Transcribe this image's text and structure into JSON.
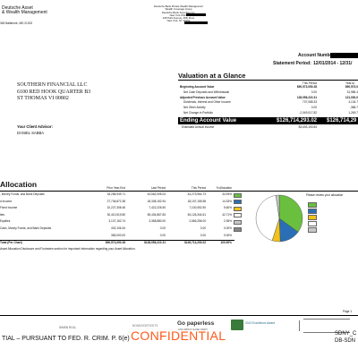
{
  "bank": {
    "name_line1": "Deutsche Asset",
    "name_line2": "& Wealth Management",
    "address": "345 Baltimore, MD 21202"
  },
  "header_center": {
    "lines": [
      "Deutsche Bank Private Wealth Management",
      "Wealth Coverage Group",
      "Deutsche Bank Securities Inc.",
      "New York Office",
      "345 Park Avenue, 26th Floor",
      "New York, NY 10154"
    ]
  },
  "account": {
    "number_label": "Account Number:",
    "statement_period_label": "Statement Period:",
    "statement_period_value": "12/01/2014 - 12/31/"
  },
  "client": {
    "lines": [
      "SOUTHERN FINANCIAL LLC",
      "6100 RED HOOK QUARTER B3",
      "ST THOMAS VI 00802"
    ],
    "advisor_label": "Your Client Advisor:",
    "advisor_name": "DANIEL SABBA"
  },
  "valuation": {
    "title": "Valuation at a Glance",
    "col_this_period": "This Period",
    "col_year_to": "Year-to",
    "rows": [
      {
        "label": "Beginning Account Value",
        "value": "$90,573,050.28",
        "ytd": "$90,573,0",
        "bold": true
      },
      {
        "label": "Net Cash Deposits and Withdrawals",
        "value": "0.00",
        "ytd": "31,986.4",
        "bold": false
      },
      {
        "label": "Adjusted Previous Account Value",
        "value": "128,056,222.31",
        "ytd": "121,030,0",
        "bold": true
      },
      {
        "label": "Dividends, Interest and Other Income",
        "value": "707,088.33",
        "ytd": "4,134.7",
        "bold": false
      },
      {
        "label": "Net Other Activity",
        "value": "0.00",
        "ytd": "-368.7",
        "bold": false
      },
      {
        "label": "Net Change in Portfolio",
        "value": "-2,049,017.82",
        "ytd": "1,269.7",
        "bold": false
      }
    ],
    "ending_label": "Ending Account Value",
    "ending_value": "$126,714,293.02",
    "ending_ytd": "$126,714,29",
    "income_label": "Estimated Annual Income",
    "income_value": "$3,693,190.84"
  },
  "allocation": {
    "title": "Allocation",
    "headers": [
      "Prior Year-End",
      "Last Period",
      "This Period",
      "% Allocation"
    ],
    "rows": [
      {
        "label": ", Money Funds, and Bank Deposits",
        "prior": "18,285,949.71",
        "last": "43,562,095.04",
        "this": "44,273,964.73",
        "pct": "34.94%",
        "color": "#6abf3f"
      },
      {
        "label": "d Income",
        "prior": "27,736,872.38",
        "last": "18,308,152.94",
        "this": "18,157,155.58",
        "pct": "14.33%",
        "color": "#2a6fb5"
      },
      {
        "label": "Fixed Income",
        "prior": "10,227,308.46",
        "last": "7,422,226.50",
        "this": "7,100,052.50",
        "pct": "5.60%",
        "color": "#f2c21a"
      },
      {
        "label": "ties",
        "prior": "30,410,519.80",
        "last": "55,404,867.83",
        "this": "54,126,344.61",
        "pct": "42.71%",
        "color": "#ffffff"
      },
      {
        "label": "Equities",
        "prior": "3,137,162.74",
        "last": "3,358,880.00",
        "this": "2,666,256.00",
        "pct": "2.36%",
        "color": "#c8c8c8"
      },
      {
        "label": "Cash, Money Funds, and Bank Deposits",
        "prior": "402,106.34",
        "last": "0.00",
        "this": "0.00",
        "pct": "0.00%",
        "color": "#888888"
      },
      {
        "label": "",
        "prior": "383,000.00",
        "last": "0.00",
        "this": "0.00",
        "pct": "0.00%",
        "color": ""
      }
    ],
    "total_label": "Total (Per Chart)",
    "total_prior": "$90,573,050.28",
    "total_last": "$128,056,222.31",
    "total_this": "$126,714,293.02",
    "total_pct": "100.00%",
    "legend_text": "Please review your allocation",
    "footnote": "Asset Allocation Disclosure and Footnotes section for important information regarding your Asset Allocation."
  },
  "chart_data": {
    "type": "pie",
    "categories": [
      "Cash, Money Funds, and Bank Deposits",
      "Fixed Income",
      "Fixed Income",
      "Equities",
      "Equities"
    ],
    "values": [
      34.94,
      14.33,
      5.6,
      42.71,
      2.36
    ],
    "colors": [
      "#6abf3f",
      "#2a6fb5",
      "#f2c21a",
      "#ffffff",
      "#c8c8c8"
    ]
  },
  "footer": {
    "page": "Page 1",
    "left_small": "SIMSN ROLL",
    "mid_small": "BONDS/DEPOSITS",
    "go_paperless": "Go paperless",
    "go_paperless_sub": "ASK ABOUT E-DELIVERY",
    "award_text": "2013 Excellence Award",
    "confidential_left": "TIAL – PURSUANT TO FED. R. CRIM. P. 6(e)",
    "confidential_center": "CONFIDENTIAL",
    "code_right1": "SDNY_C",
    "code_right2": "DB-SDN"
  }
}
